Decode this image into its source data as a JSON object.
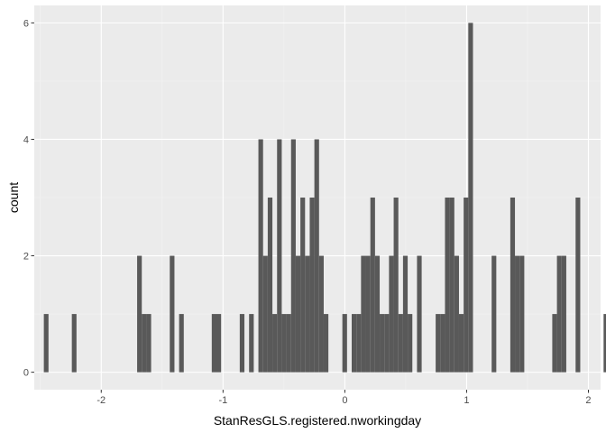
{
  "chart_data": {
    "type": "bar",
    "title": "",
    "xlabel": "StanResGLS.registered.nworkingday",
    "ylabel": "count",
    "xlim": [
      -2.55,
      2.1
    ],
    "ylim": [
      -0.3,
      6.3
    ],
    "xticks": [
      -2,
      -1,
      0,
      1,
      2
    ],
    "yticks": [
      0,
      2,
      4,
      6
    ],
    "xtick_labels": [
      "-2",
      "-1",
      "0",
      "1",
      "2"
    ],
    "ytick_labels": [
      "0",
      "2",
      "4",
      "6"
    ],
    "grid": true,
    "bin_width": 0.0383,
    "bin_start": -2.4714,
    "counts": [
      1,
      0,
      0,
      0,
      0,
      0,
      1,
      0,
      0,
      0,
      0,
      0,
      0,
      0,
      0,
      0,
      0,
      0,
      0,
      0,
      2,
      1,
      1,
      0,
      0,
      0,
      0,
      2,
      0,
      1,
      0,
      0,
      0,
      0,
      0,
      0,
      1,
      1,
      0,
      0,
      0,
      0,
      1,
      0,
      1,
      0,
      4,
      2,
      3,
      1,
      4,
      1,
      1,
      4,
      2,
      3,
      2,
      3,
      4,
      2,
      1,
      0,
      0,
      0,
      1,
      0,
      1,
      1,
      2,
      2,
      3,
      2,
      1,
      1,
      2,
      3,
      1,
      2,
      1,
      0,
      2,
      0,
      0,
      0,
      1,
      1,
      3,
      3,
      2,
      1,
      3,
      6,
      0,
      0,
      0,
      0,
      2,
      0,
      0,
      0,
      3,
      2,
      2,
      0,
      0,
      0,
      0,
      0,
      0,
      1,
      2,
      2,
      0,
      0,
      3,
      0,
      0,
      0,
      0,
      0,
      1
    ],
    "colors": {
      "bar": "#595959",
      "panel": "#ebebeb",
      "grid_major": "#ffffff",
      "grid_minor": "#f3f3f3",
      "tick_text": "#4d4d4d",
      "axis_title": "#000000"
    }
  }
}
